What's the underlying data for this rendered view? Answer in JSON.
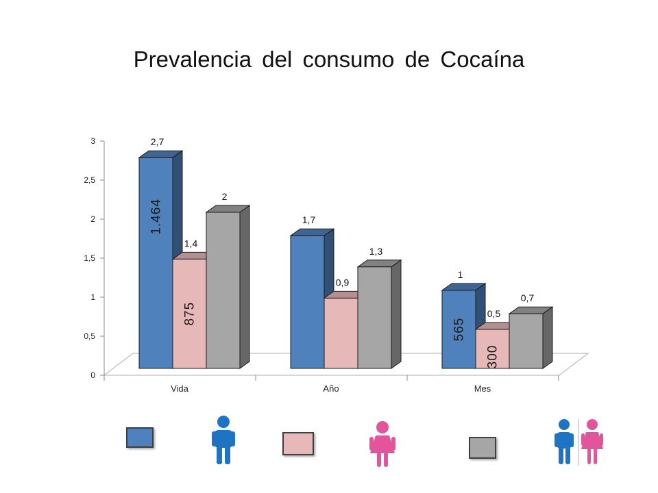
{
  "title": "Prevalencia del consumo de Cocaína",
  "chart_data": {
    "type": "bar",
    "title": "Prevalencia del consumo de Cocaína",
    "categories": [
      "Vida",
      "Año",
      "Mes"
    ],
    "ylim": [
      0,
      3
    ],
    "yticks": [
      0,
      0.5,
      1,
      1.5,
      2,
      2.5,
      3
    ],
    "ytick_labels": [
      "0",
      "0,5",
      "1",
      "1,5",
      "2",
      "2,5",
      "3"
    ],
    "series": [
      {
        "values": [
          2.7,
          1.7,
          1.0
        ],
        "labels": [
          "2,7",
          "1,7",
          "1"
        ],
        "counts": [
          "1.464",
          "",
          "565"
        ],
        "color": "#4f81bd"
      },
      {
        "values": [
          1.4,
          0.9,
          0.5
        ],
        "labels": [
          "1,4",
          "0,9",
          "0,5"
        ],
        "counts": [
          "875",
          "",
          "300"
        ],
        "color": "#e6b9b8"
      },
      {
        "values": [
          2.0,
          1.3,
          0.7
        ],
        "labels": [
          "2",
          "1,3",
          "0,7"
        ],
        "counts": [
          "",
          "",
          ""
        ],
        "color": "#a6a6a6"
      }
    ],
    "grid": false,
    "legend": "bottom",
    "legend_items": [
      {
        "color": "#4f81bd",
        "icon": "male-person-icon"
      },
      {
        "color": "#e6b9b8",
        "icon": "female-person-icon"
      },
      {
        "color": "#a6a6a6",
        "icon": "male-female-pair-icon"
      }
    ]
  }
}
